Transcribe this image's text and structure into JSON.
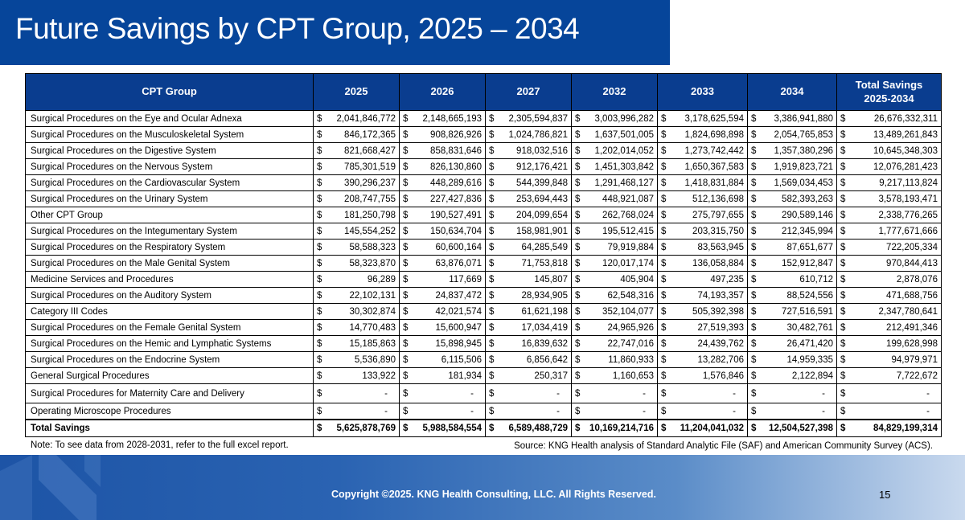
{
  "title": "Future Savings by CPT Group, 2025 – 2034",
  "table": {
    "headers": [
      "CPT Group",
      "2025",
      "2026",
      "2027",
      "2032",
      "2033",
      "2034",
      "Total Savings 2025-2034"
    ],
    "currency": "$",
    "rows": [
      {
        "name": "Surgical Procedures on the Eye and Ocular Adnexa",
        "values": [
          "2,041,846,772",
          "2,148,665,193",
          "2,305,594,837",
          "3,003,996,282",
          "3,178,625,594",
          "3,386,941,880",
          "26,676,332,311"
        ]
      },
      {
        "name": "Surgical Procedures on the Musculoskeletal System",
        "values": [
          "846,172,365",
          "908,826,926",
          "1,024,786,821",
          "1,637,501,005",
          "1,824,698,898",
          "2,054,765,853",
          "13,489,261,843"
        ]
      },
      {
        "name": "Surgical Procedures on the Digestive System",
        "values": [
          "821,668,427",
          "858,831,646",
          "918,032,516",
          "1,202,014,052",
          "1,273,742,442",
          "1,357,380,296",
          "10,645,348,303"
        ]
      },
      {
        "name": "Surgical Procedures on the Nervous System",
        "values": [
          "785,301,519",
          "826,130,860",
          "912,176,421",
          "1,451,303,842",
          "1,650,367,583",
          "1,919,823,721",
          "12,076,281,423"
        ]
      },
      {
        "name": "Surgical Procedures on the Cardiovascular System",
        "values": [
          "390,296,237",
          "448,289,616",
          "544,399,848",
          "1,291,468,127",
          "1,418,831,884",
          "1,569,034,453",
          "9,217,113,824"
        ]
      },
      {
        "name": "Surgical Procedures on the Urinary System",
        "values": [
          "208,747,755",
          "227,427,836",
          "253,694,443",
          "448,921,087",
          "512,136,698",
          "582,393,263",
          "3,578,193,471"
        ]
      },
      {
        "name": "Other CPT Group",
        "values": [
          "181,250,798",
          "190,527,491",
          "204,099,654",
          "262,768,024",
          "275,797,655",
          "290,589,146",
          "2,338,776,265"
        ]
      },
      {
        "name": "Surgical Procedures on the Integumentary System",
        "values": [
          "145,554,252",
          "150,634,704",
          "158,981,901",
          "195,512,415",
          "203,315,750",
          "212,345,994",
          "1,777,671,666"
        ]
      },
      {
        "name": "Surgical Procedures on the Respiratory System",
        "values": [
          "58,588,323",
          "60,600,164",
          "64,285,549",
          "79,919,884",
          "83,563,945",
          "87,651,677",
          "722,205,334"
        ]
      },
      {
        "name": "Surgical Procedures on the Male Genital System",
        "values": [
          "58,323,870",
          "63,876,071",
          "71,753,818",
          "120,017,174",
          "136,058,884",
          "152,912,847",
          "970,844,413"
        ]
      },
      {
        "name": "Medicine Services and Procedures",
        "values": [
          "96,289",
          "117,669",
          "145,807",
          "405,904",
          "497,235",
          "610,712",
          "2,878,076"
        ]
      },
      {
        "name": "Surgical Procedures on the Auditory System",
        "values": [
          "22,102,131",
          "24,837,472",
          "28,934,905",
          "62,548,316",
          "74,193,357",
          "88,524,556",
          "471,688,756"
        ]
      },
      {
        "name": "Category III Codes",
        "values": [
          "30,302,874",
          "42,021,574",
          "61,621,198",
          "352,104,077",
          "505,392,398",
          "727,516,591",
          "2,347,780,641"
        ]
      },
      {
        "name": "Surgical Procedures on the Female Genital System",
        "values": [
          "14,770,483",
          "15,600,947",
          "17,034,419",
          "24,965,926",
          "27,519,393",
          "30,482,761",
          "212,491,346"
        ]
      },
      {
        "name": "Surgical Procedures on the Hemic and Lymphatic Systems",
        "values": [
          "15,185,863",
          "15,898,945",
          "16,839,632",
          "22,747,016",
          "24,439,762",
          "26,471,420",
          "199,628,998"
        ]
      },
      {
        "name": "Surgical Procedures on the Endocrine System",
        "values": [
          "5,536,890",
          "6,115,506",
          "6,856,642",
          "11,860,933",
          "13,282,706",
          "14,959,335",
          "94,979,971"
        ]
      },
      {
        "name": "General Surgical Procedures",
        "values": [
          "133,922",
          "181,934",
          "250,317",
          "1,160,653",
          "1,576,846",
          "2,122,894",
          "7,722,672"
        ]
      },
      {
        "name": "Surgical Procedures for Maternity Care and Delivery",
        "values": [
          "-",
          "-",
          "-",
          "-",
          "-",
          "-",
          "-"
        ]
      },
      {
        "name": "Operating Microscope Procedures",
        "values": [
          "-",
          "-",
          "-",
          "-",
          "-",
          "-",
          "-"
        ]
      }
    ],
    "total": {
      "name": "Total Savings",
      "values": [
        "5,625,878,769",
        "5,988,584,554",
        "6,589,488,729",
        "10,169,214,716",
        "11,204,041,032",
        "12,504,527,398",
        "84,829,199,314"
      ]
    }
  },
  "note": "Note: To see data from 2028-2031, refer to the full excel report.",
  "source": "Source: KNG Health analysis of Standard Analytic File (SAF) and American Community Survey (ACS).",
  "footer": {
    "copyright": "Copyright ©2025. KNG Health Consulting, LLC. All Rights Reserved.",
    "page_number": "15"
  },
  "colors": {
    "title_bar": "#06459a",
    "header_fill": "#0a3d8f",
    "footer_start": "#1d54a6",
    "footer_end": "#c9d9ee"
  }
}
